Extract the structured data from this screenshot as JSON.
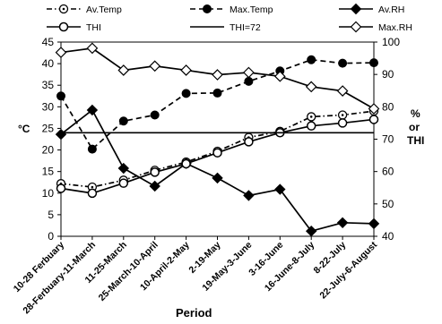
{
  "chart_data": {
    "type": "line",
    "xlabel": "Period",
    "ylabel_left": "°C",
    "ylabel_right": [
      "%",
      "or",
      "THI"
    ],
    "ylim_left": [
      0,
      45
    ],
    "ylim_right": [
      40,
      100
    ],
    "yticks_left": [
      "0",
      "5",
      "10",
      "15",
      "20",
      "25",
      "30",
      "35",
      "40",
      "45"
    ],
    "yticks_right": [
      "40",
      "50",
      "60",
      "70",
      "80",
      "90",
      "100"
    ],
    "categories": [
      "10-28 Ferbuary",
      "28-Ferbuary-11-March",
      "11-25-March",
      "25-March-10-April",
      "10-April-2-May",
      "2-19-May",
      "19-May-3-June",
      "3-16-June",
      "16-June-8-July",
      "8-22-July",
      "22-July-6-August"
    ],
    "legend": [
      "Av.Temp",
      "Max.Temp",
      "Av.RH",
      "THI",
      "THI=72",
      "Max.RH"
    ],
    "series": [
      {
        "name": "Av.Temp",
        "axis": "left",
        "style": "dashdot",
        "marker": "circle-open-dot",
        "color": "#000000",
        "values": [
          12.2,
          11.4,
          13.0,
          15.3,
          17.2,
          19.7,
          22.9,
          24.3,
          27.7,
          28.1,
          29.0
        ]
      },
      {
        "name": "Max.Temp",
        "axis": "left",
        "style": "dashed",
        "marker": "circle-filled",
        "color": "#000000",
        "values": [
          32.5,
          20.2,
          26.7,
          28.1,
          33.1,
          33.2,
          35.9,
          38.3,
          40.9,
          40.1,
          40.2
        ]
      },
      {
        "name": "Av.RH",
        "axis": "right",
        "style": "solid",
        "marker": "diamond-filled",
        "color": "#000000",
        "values": [
          71.5,
          79.0,
          61.0,
          55.5,
          62.5,
          58.0,
          52.6,
          54.5,
          41.6,
          44.2,
          43.9
        ]
      },
      {
        "name": "THI",
        "axis": "right",
        "style": "solid",
        "marker": "circle-open",
        "color": "#000000",
        "values": [
          54.8,
          53.3,
          56.4,
          59.8,
          62.4,
          65.8,
          69.2,
          72.0,
          74.1,
          75.0,
          76.1
        ]
      },
      {
        "name": "THI=72",
        "axis": "right",
        "style": "solid",
        "marker": "none",
        "color": "#000000",
        "values": [
          72,
          72,
          72,
          72,
          72,
          72,
          72,
          72,
          72,
          72,
          72
        ]
      },
      {
        "name": "Max.RH",
        "axis": "right",
        "style": "solid",
        "marker": "diamond-open",
        "color": "#000000",
        "values": [
          96.8,
          98.1,
          91.3,
          92.6,
          91.3,
          89.9,
          90.6,
          89.4,
          86.2,
          84.9,
          79.4
        ]
      }
    ]
  }
}
